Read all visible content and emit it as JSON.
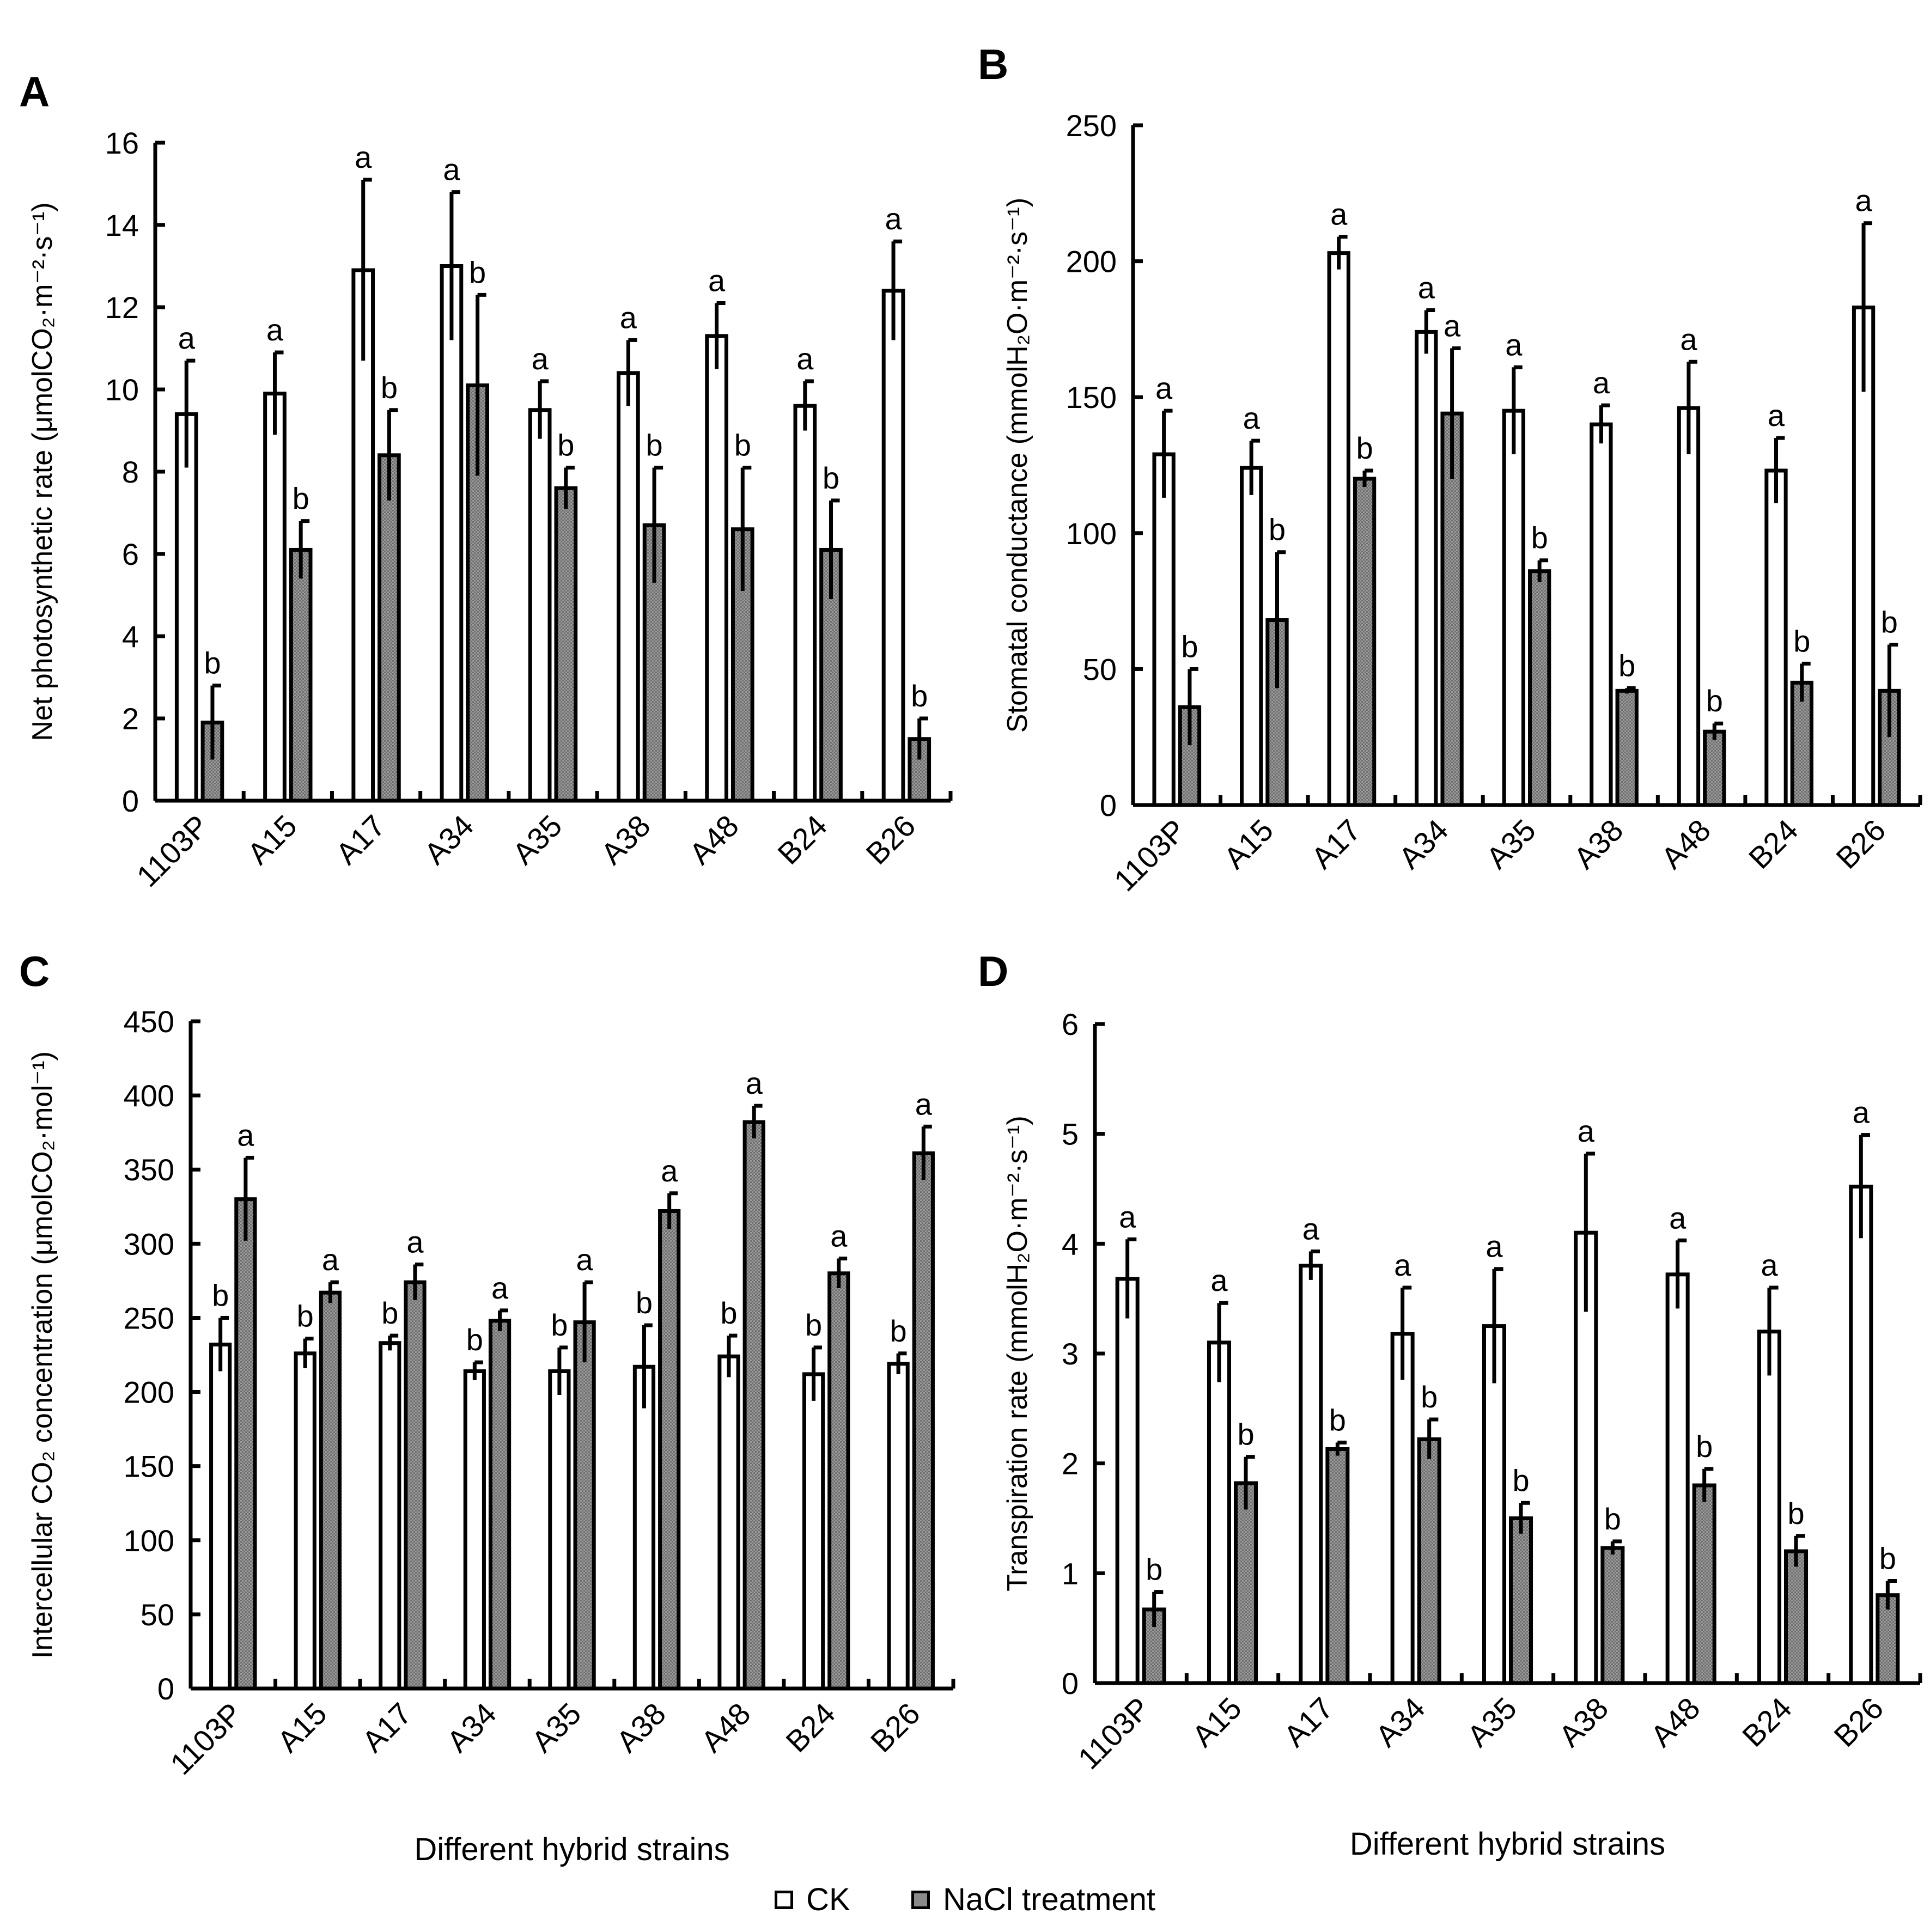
{
  "legend": {
    "ck_label": "CK",
    "nacl_label": "NaCl treatment"
  },
  "colors": {
    "ck": "#ffffff",
    "nacl": "#8a8a8a",
    "stroke": "#000000"
  },
  "chart_data": [
    {
      "panel": "A",
      "type": "bar",
      "ylabel": "Net photosynthetic rate (μmolCO₂·m⁻²·s⁻¹)",
      "xlabel": "",
      "ylim": [
        0,
        16
      ],
      "yticks": [
        0,
        2,
        4,
        6,
        8,
        10,
        12,
        14,
        16
      ],
      "categories": [
        "1103P",
        "A15",
        "A17",
        "A34",
        "A35",
        "A38",
        "A48",
        "B24",
        "B26"
      ],
      "series": [
        {
          "name": "CK",
          "values": [
            9.4,
            9.9,
            12.9,
            13.0,
            9.5,
            10.4,
            11.3,
            9.6,
            12.4
          ],
          "errors": [
            1.3,
            1.0,
            2.2,
            1.8,
            0.7,
            0.8,
            0.8,
            0.6,
            1.2
          ],
          "letters": [
            "a",
            "a",
            "a",
            "a",
            "a",
            "a",
            "a",
            "a",
            "a"
          ]
        },
        {
          "name": "NaCl treatment",
          "values": [
            1.9,
            6.1,
            8.4,
            10.1,
            7.6,
            6.7,
            6.6,
            6.1,
            1.5
          ],
          "errors": [
            0.9,
            0.7,
            1.1,
            2.2,
            0.5,
            1.4,
            1.5,
            1.2,
            0.5
          ],
          "letters": [
            "b",
            "b",
            "b",
            "b",
            "b",
            "b",
            "b",
            "b",
            "b"
          ]
        }
      ]
    },
    {
      "panel": "B",
      "type": "bar",
      "ylabel": "Stomatal conductance (mmolH₂O·m⁻²·s⁻¹)",
      "xlabel": "",
      "ylim": [
        0,
        250
      ],
      "yticks": [
        0,
        50,
        100,
        150,
        200,
        250
      ],
      "categories": [
        "1103P",
        "A15",
        "A17",
        "A34",
        "A35",
        "A38",
        "A48",
        "B24",
        "B26"
      ],
      "series": [
        {
          "name": "CK",
          "values": [
            129,
            124,
            203,
            174,
            145,
            140,
            146,
            123,
            183
          ],
          "errors": [
            16,
            10,
            6,
            8,
            16,
            7,
            17,
            12,
            31
          ],
          "letters": [
            "a",
            "a",
            "a",
            "a",
            "a",
            "a",
            "a",
            "a",
            "a"
          ]
        },
        {
          "name": "NaCl treatment",
          "values": [
            36,
            68,
            120,
            144,
            86,
            42,
            27,
            45,
            42
          ],
          "errors": [
            14,
            25,
            3,
            24,
            4,
            1,
            3,
            7,
            17
          ],
          "letters": [
            "b",
            "b",
            "b",
            "a",
            "b",
            "b",
            "b",
            "b",
            "b"
          ]
        }
      ]
    },
    {
      "panel": "C",
      "type": "bar",
      "ylabel": "Intercellular CO₂ concentration (μmolCO₂·mol⁻¹)",
      "xlabel": "Different hybrid strains",
      "ylim": [
        0,
        450
      ],
      "yticks": [
        0,
        50,
        100,
        150,
        200,
        250,
        300,
        350,
        400,
        450
      ],
      "categories": [
        "1103P",
        "A15",
        "A17",
        "A34",
        "A35",
        "A38",
        "A48",
        "B24",
        "B26"
      ],
      "series": [
        {
          "name": "CK",
          "values": [
            232,
            226,
            233,
            214,
            214,
            217,
            224,
            212,
            219
          ],
          "errors": [
            18,
            10,
            5,
            6,
            16,
            28,
            14,
            18,
            7
          ],
          "letters": [
            "b",
            "b",
            "b",
            "b",
            "b",
            "b",
            "b",
            "b",
            "b"
          ]
        },
        {
          "name": "NaCl treatment",
          "values": [
            330,
            267,
            274,
            248,
            247,
            322,
            382,
            280,
            361
          ],
          "errors": [
            28,
            7,
            12,
            7,
            27,
            12,
            11,
            10,
            18
          ],
          "letters": [
            "a",
            "a",
            "a",
            "a",
            "a",
            "a",
            "a",
            "a",
            "a"
          ]
        }
      ]
    },
    {
      "panel": "D",
      "type": "bar",
      "ylabel": "Transpiration rate (mmolH₂O·m⁻²·s⁻¹)",
      "xlabel": "Different hybrid strains",
      "ylim": [
        0,
        6
      ],
      "yticks": [
        0,
        1,
        2,
        3,
        4,
        5,
        6
      ],
      "categories": [
        "1103P",
        "A15",
        "A17",
        "A34",
        "A35",
        "A38",
        "A48",
        "B24",
        "B26"
      ],
      "series": [
        {
          "name": "CK",
          "values": [
            3.68,
            3.1,
            3.8,
            3.18,
            3.25,
            4.1,
            3.72,
            3.2,
            4.52
          ],
          "errors": [
            0.36,
            0.36,
            0.13,
            0.42,
            0.52,
            0.72,
            0.31,
            0.4,
            0.47
          ],
          "letters": [
            "a",
            "a",
            "a",
            "a",
            "a",
            "a",
            "a",
            "a",
            "a"
          ]
        },
        {
          "name": "NaCl treatment",
          "values": [
            0.67,
            1.82,
            2.13,
            2.22,
            1.5,
            1.23,
            1.8,
            1.2,
            0.8
          ],
          "errors": [
            0.16,
            0.24,
            0.06,
            0.18,
            0.14,
            0.06,
            0.15,
            0.14,
            0.13
          ],
          "letters": [
            "b",
            "b",
            "b",
            "b",
            "b",
            "b",
            "b",
            "b",
            "b"
          ]
        }
      ]
    }
  ]
}
